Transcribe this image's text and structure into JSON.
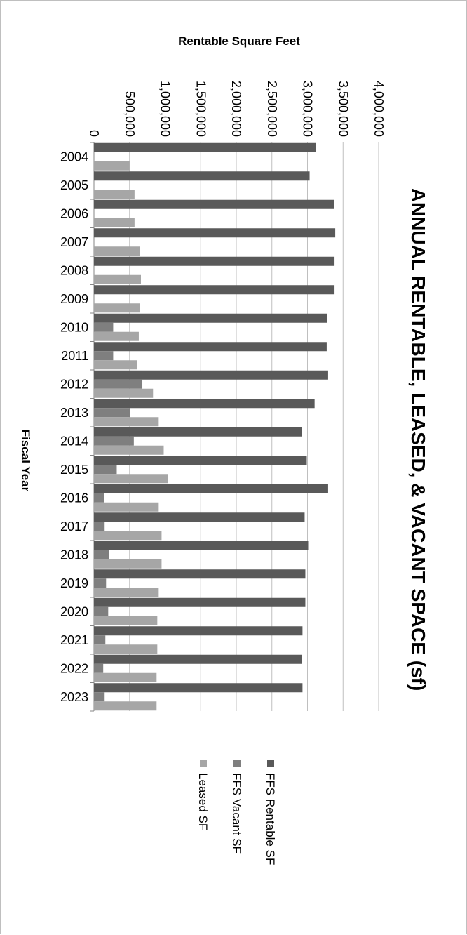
{
  "chart_data": {
    "type": "bar",
    "orientation": "horizontal",
    "title": "ANNUAL RENTABLE, LEASED, & VACANT SPACE (sf)",
    "xlabel": "Rentable Square Feet",
    "ylabel": "Fiscal Year",
    "xlim": [
      0,
      4000000
    ],
    "xticks": [
      0,
      500000,
      1000000,
      1500000,
      2000000,
      2500000,
      3000000,
      3500000,
      4000000
    ],
    "xtick_labels": [
      "0",
      "500,000",
      "1,000,000",
      "1,500,000",
      "2,000,000",
      "2,500,000",
      "3,000,000",
      "3,500,000",
      "4,000,000"
    ],
    "grid": true,
    "legend_position": "bottom",
    "categories": [
      "2004",
      "2005",
      "2006",
      "2007",
      "2008",
      "2009",
      "2010",
      "2011",
      "2012",
      "2013",
      "2014",
      "2015",
      "2016",
      "2017",
      "2018",
      "2019",
      "2020",
      "2021",
      "2022",
      "2023"
    ],
    "series": [
      {
        "name": "FFS Rentable SF",
        "color": "#595959",
        "values": [
          3120000,
          3030000,
          3370000,
          3390000,
          3380000,
          3380000,
          3280000,
          3270000,
          3290000,
          3100000,
          2920000,
          2990000,
          3290000,
          2960000,
          3010000,
          2970000,
          2970000,
          2930000,
          2920000,
          2930000
        ]
      },
      {
        "name": "FFS Vacant SF",
        "color": "#7f7f7f",
        "values": [
          0,
          0,
          0,
          0,
          0,
          0,
          270000,
          270000,
          680000,
          510000,
          560000,
          320000,
          140000,
          150000,
          210000,
          170000,
          200000,
          160000,
          130000,
          150000
        ]
      },
      {
        "name": "Leased SF",
        "color": "#a6a6a6",
        "values": [
          500000,
          570000,
          570000,
          650000,
          660000,
          650000,
          630000,
          610000,
          830000,
          910000,
          980000,
          1040000,
          910000,
          950000,
          950000,
          910000,
          890000,
          890000,
          880000,
          880000
        ]
      }
    ]
  }
}
